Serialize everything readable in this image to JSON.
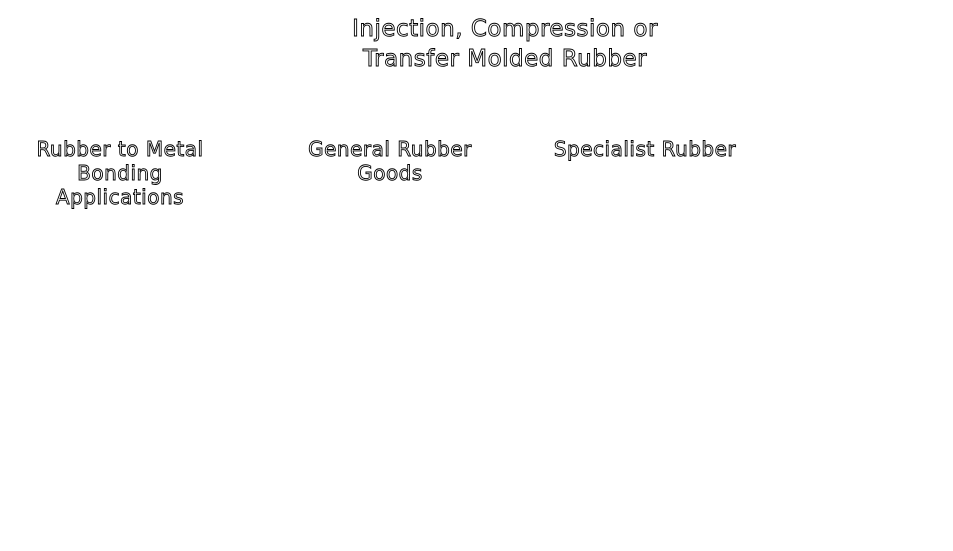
{
  "slide": {
    "title_lines": [
      "Injection, Compression or",
      "Transfer Molded Rubber"
    ],
    "columns": [
      {
        "lines": [
          "Rubber to Metal",
          "Bonding",
          "Applications"
        ]
      },
      {
        "lines": [
          "General Rubber",
          "Goods"
        ]
      },
      {
        "lines": [
          "Specialist Rubber"
        ]
      }
    ],
    "colors": {
      "background": "#ffffff",
      "text_fill": "#ffffff",
      "text_outline": "#000000"
    }
  }
}
